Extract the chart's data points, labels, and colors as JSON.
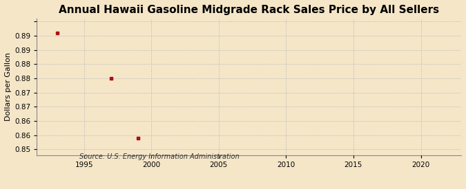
{
  "title": "Annual Hawaii Gasoline Midgrade Rack Sales Price by All Sellers",
  "ylabel": "Dollars per Gallon",
  "source": "Source: U.S. Energy Information Administration",
  "x_data": [
    1993,
    1997,
    1999
  ],
  "y_data": [
    0.891,
    0.875,
    0.854
  ],
  "xlim": [
    1991.5,
    2023
  ],
  "ylim": [
    0.848,
    0.896
  ],
  "xticks": [
    1995,
    2000,
    2005,
    2010,
    2015,
    2020
  ],
  "ytick_positions": [
    0.85,
    0.855,
    0.86,
    0.865,
    0.87,
    0.875,
    0.88,
    0.885,
    0.89,
    0.895
  ],
  "ytick_labels": [
    "0.85",
    "0.86",
    "0.86",
    "0.87",
    "0.87",
    "0.88",
    "0.88",
    "0.89",
    "0.89",
    ""
  ],
  "marker_color": "#aa1111",
  "marker": "s",
  "marker_size": 3.5,
  "background_color": "#f5e6c8",
  "grid_color": "#bbbbbb",
  "title_fontsize": 11,
  "axis_label_fontsize": 8,
  "tick_fontsize": 7.5
}
